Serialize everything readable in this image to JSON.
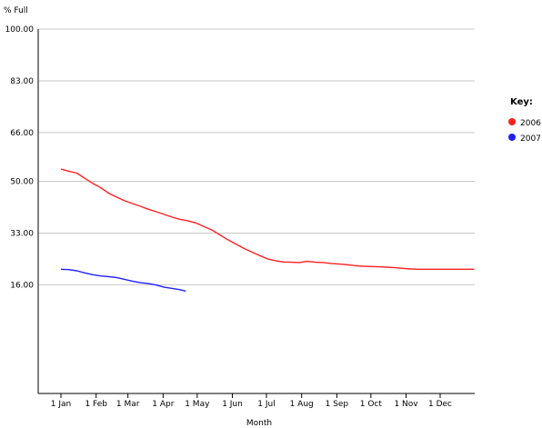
{
  "chart_data": {
    "type": "line",
    "title": "",
    "ylabel": "% Full",
    "xlabel": "Month",
    "ylim": [
      0,
      100
    ],
    "yticks": [
      "100.00",
      "83.00",
      "66.00",
      "50.00",
      "33.00",
      "16.00"
    ],
    "ytick_values": [
      100,
      83,
      66,
      50,
      33,
      16
    ],
    "xticks": [
      "1 Jan",
      "1 Feb",
      "1 Mar",
      "1 Apr",
      "1 May",
      "1 Jun",
      "1 Jul",
      "1 Aug",
      "1 Sep",
      "1 Oct",
      "1 Nov",
      "1 Dec"
    ],
    "grid": "horizontal",
    "legend": {
      "title": "Key:",
      "placement": "right"
    },
    "series": [
      {
        "name": "2006",
        "color": "#ff2020",
        "x": [
          "1 Jan",
          "8 Jan",
          "15 Jan",
          "22 Jan",
          "29 Jan",
          "5 Feb",
          "12 Feb",
          "19 Feb",
          "26 Feb",
          "5 Mar",
          "12 Mar",
          "19 Mar",
          "26 Mar",
          "2 Apr",
          "9 Apr",
          "16 Apr",
          "23 Apr",
          "30 Apr",
          "7 May",
          "14 May",
          "21 May",
          "28 May",
          "4 Jun",
          "11 Jun",
          "18 Jun",
          "25 Jun",
          "2 Jul",
          "9 Jul",
          "16 Jul",
          "23 Jul",
          "30 Jul",
          "6 Aug",
          "13 Aug",
          "20 Aug",
          "27 Aug",
          "3 Sep",
          "10 Sep",
          "17 Sep",
          "24 Sep",
          "1 Oct",
          "8 Oct",
          "15 Oct",
          "22 Oct",
          "29 Oct",
          "5 Nov",
          "12 Nov",
          "19 Nov",
          "26 Nov",
          "3 Dec",
          "10 Dec",
          "17 Dec",
          "24 Dec",
          "31 Dec"
        ],
        "values": [
          54,
          53.3,
          52.7,
          51,
          49.3,
          47.9,
          46.1,
          44.8,
          43.6,
          42.7,
          41.8,
          40.8,
          40,
          39.1,
          38.2,
          37.5,
          37,
          36.3,
          35.1,
          34,
          32.4,
          30.8,
          29.4,
          28,
          26.8,
          25.6,
          24.5,
          23.9,
          23.5,
          23.4,
          23.3,
          23.7,
          23.4,
          23.3,
          23,
          22.8,
          22.6,
          22.3,
          22.1,
          22,
          21.9,
          21.8,
          21.6,
          21.4,
          21.2,
          21.1,
          21.1,
          21.1,
          21.1,
          21.1,
          21.1,
          21.1,
          21.1
        ]
      },
      {
        "name": "2007",
        "color": "#2020ff",
        "x": [
          "1 Jan",
          "8 Jan",
          "15 Jan",
          "22 Jan",
          "29 Jan",
          "5 Feb",
          "12 Feb",
          "19 Feb",
          "26 Feb",
          "5 Mar",
          "12 Mar",
          "19 Mar",
          "26 Mar",
          "2 Apr",
          "9 Apr",
          "16 Apr",
          "21 Apr"
        ],
        "values": [
          21.1,
          21,
          20.6,
          19.9,
          19.3,
          18.9,
          18.7,
          18.4,
          17.8,
          17.2,
          16.7,
          16.4,
          15.9,
          15.2,
          14.8,
          14.4,
          13.9
        ]
      }
    ]
  }
}
